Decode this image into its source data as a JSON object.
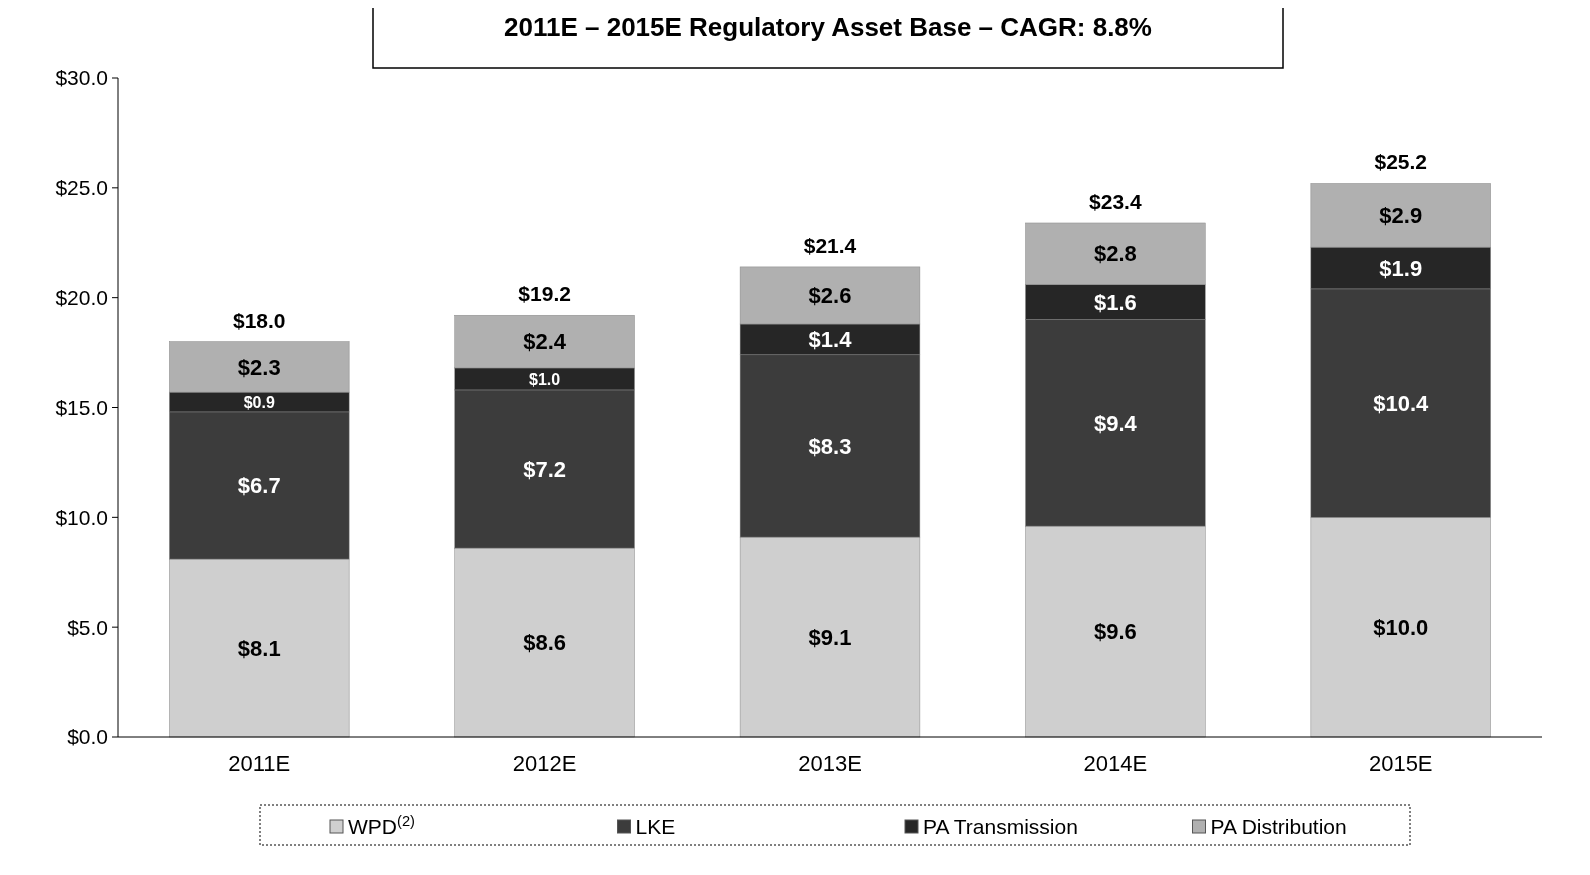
{
  "chart_data": {
    "type": "bar",
    "title": "2011E – 2015E Regulatory Asset Base – CAGR: 8.8%",
    "stacked": true,
    "categories": [
      "2011E",
      "2012E",
      "2013E",
      "2014E",
      "2015E"
    ],
    "series": [
      {
        "name": "WPD$^{(2)}$",
        "color": "#cfcfcf",
        "values": [
          8.1,
          8.6,
          9.1,
          9.6,
          10.0
        ],
        "value_labels": [
          "$8.1",
          "$8.6",
          "$9.1",
          "$9.6",
          "$10.0"
        ]
      },
      {
        "name": "LKE",
        "color": "#3c3c3c",
        "values": [
          6.7,
          7.2,
          8.3,
          9.4,
          10.4
        ],
        "value_labels": [
          "$6.7",
          "$7.2",
          "$8.3",
          "$9.4",
          "$10.4"
        ]
      },
      {
        "name": "PA Transmission",
        "color": "#262626",
        "values": [
          0.9,
          1.0,
          1.4,
          1.6,
          1.9
        ],
        "value_labels": [
          "$0.9",
          "$1.0",
          "$1.4",
          "$1.6",
          "$1.9"
        ]
      },
      {
        "name": "PA Distribution",
        "color": "#b0b0b0",
        "values": [
          2.3,
          2.4,
          2.6,
          2.8,
          2.9
        ],
        "value_labels": [
          "$2.3",
          "$2.4",
          "$2.6",
          "$2.8",
          "$2.9"
        ]
      }
    ],
    "totals": [
      "$18.0",
      "$19.2",
      "$21.4",
      "$23.4",
      "$25.2"
    ],
    "ylim": [
      0,
      30
    ],
    "yticks": [
      {
        "value": 0,
        "label": "$0.0"
      },
      {
        "value": 5,
        "label": "$5.0"
      },
      {
        "value": 10,
        "label": "$10.0"
      },
      {
        "value": 15,
        "label": "$15.0"
      },
      {
        "value": 20,
        "label": "$20.0"
      },
      {
        "value": 25,
        "label": "$25.0"
      },
      {
        "value": 30,
        "label": "$30.0"
      }
    ],
    "grid": false,
    "legend": "bottom"
  }
}
